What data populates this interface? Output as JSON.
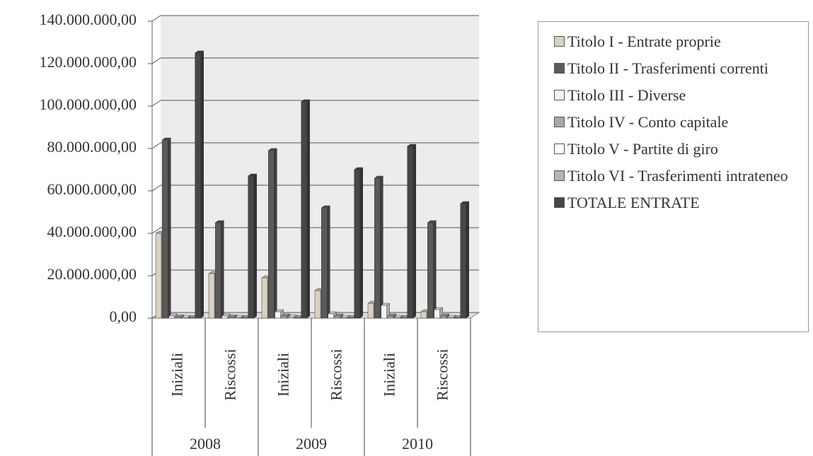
{
  "chart_data": {
    "type": "bar",
    "categories": [
      "Iniziali",
      "Riscossi",
      "Iniziali",
      "Riscossi",
      "Iniziali",
      "Riscossi"
    ],
    "category_groups": [
      "2008",
      "2009",
      "2010"
    ],
    "series": [
      {
        "name": "Titolo I - Entrate proprie",
        "color": "#d9d2c2",
        "values": [
          40000000,
          21000000,
          19000000,
          13000000,
          7000000,
          3000000
        ]
      },
      {
        "name": "Titolo II - Trasferimenti correnti",
        "color": "#5a5a5a",
        "values": [
          84000000,
          45000000,
          79000000,
          52000000,
          66000000,
          45000000
        ]
      },
      {
        "name": "Titolo III - Diverse",
        "color": "#f4f4f4",
        "values": [
          1000000,
          1000000,
          3000000,
          2000000,
          6000000,
          4000000
        ]
      },
      {
        "name": "Titolo IV - Conto capitale",
        "color": "#a8a8a8",
        "values": [
          500000,
          500000,
          1000000,
          1000000,
          1000000,
          1000000
        ]
      },
      {
        "name": "Titolo V - Partite di giro",
        "color": "#ffffff",
        "values": [
          300000,
          300000,
          500000,
          300000,
          300000,
          300000
        ]
      },
      {
        "name": "Titolo VI - Trasferimenti intrateneo",
        "color": "#b5b5b5",
        "values": [
          200000,
          200000,
          200000,
          200000,
          200000,
          200000
        ]
      },
      {
        "name": "TOTALE ENTRATE",
        "color": "#474747",
        "values": [
          125000000,
          67000000,
          102000000,
          70000000,
          81000000,
          54000000
        ]
      }
    ],
    "ylim": [
      0,
      140000000
    ],
    "yticks": [
      {
        "value": 0,
        "label": "0,00"
      },
      {
        "value": 20000000,
        "label": "20.000.000,00"
      },
      {
        "value": 40000000,
        "label": "40.000.000,00"
      },
      {
        "value": 60000000,
        "label": "60.000.000,00"
      },
      {
        "value": 80000000,
        "label": "80.000.000,00"
      },
      {
        "value": 100000000,
        "label": "100.000.000,00"
      },
      {
        "value": 120000000,
        "label": "120.000.000,00"
      },
      {
        "value": 140000000,
        "label": "140.000.000,00"
      }
    ],
    "grid": true,
    "legend": "right"
  }
}
